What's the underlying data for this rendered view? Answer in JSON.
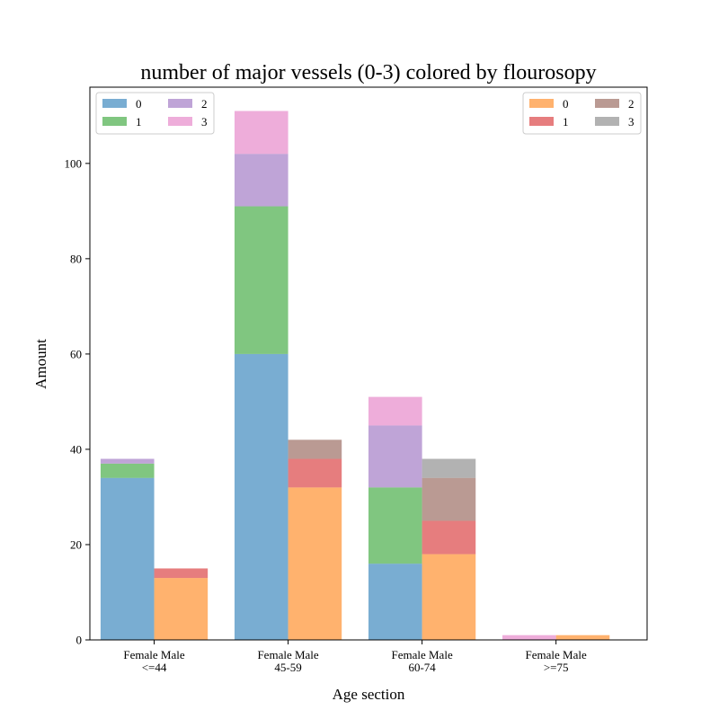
{
  "chart_data": {
    "type": "bar",
    "title": "number of major vessels (0-3) colored by flourosopy",
    "xlabel": "Age section",
    "ylabel": "Amount",
    "ylim": [
      0,
      116
    ],
    "yticks": [
      0,
      20,
      40,
      60,
      80,
      100
    ],
    "grid": false,
    "categories": [
      "Female Male\n<=44",
      "Female Male\n45-59",
      "Female Male\n60-74",
      "Female Male\n>=75"
    ],
    "groups": [
      {
        "name": "Female",
        "legend_position": "upper-left",
        "series": [
          {
            "name": "0",
            "color": "#1f77b4",
            "values": [
              34,
              60,
              16,
              0
            ]
          },
          {
            "name": "1",
            "color": "#2ca02c",
            "values": [
              3,
              31,
              16,
              0
            ]
          },
          {
            "name": "2",
            "color": "#9467bd",
            "values": [
              1,
              11,
              13,
              0
            ]
          },
          {
            "name": "3",
            "color": "#e377c2",
            "values": [
              0,
              9,
              6,
              1
            ]
          }
        ]
      },
      {
        "name": "Male",
        "legend_position": "upper-right",
        "series": [
          {
            "name": "0",
            "color": "#ff7f0e",
            "values": [
              13,
              32,
              18,
              1
            ]
          },
          {
            "name": "1",
            "color": "#d62728",
            "values": [
              2,
              6,
              7,
              0
            ]
          },
          {
            "name": "2",
            "color": "#8c564b",
            "values": [
              0,
              4,
              9,
              0
            ]
          },
          {
            "name": "3",
            "color": "#7f7f7f",
            "values": [
              0,
              0,
              4,
              0
            ]
          }
        ]
      }
    ]
  }
}
